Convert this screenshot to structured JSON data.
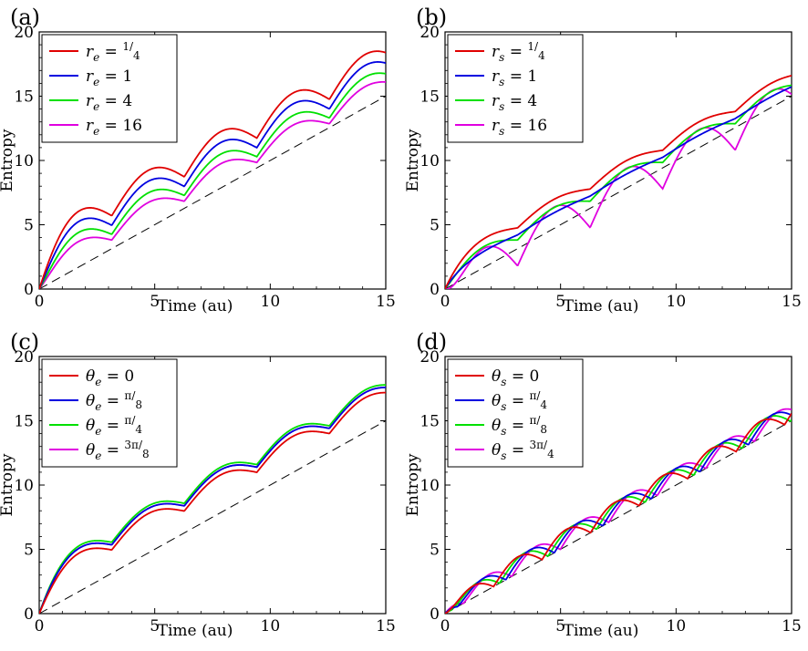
{
  "chart_data": [
    {
      "type": "line",
      "panel_label": "(a)",
      "xlabel": "Time (au)",
      "ylabel": "Entropy",
      "xlim": [
        0,
        15
      ],
      "ylim": [
        0,
        20
      ],
      "xticks": [
        "0",
        "5",
        "10",
        "15"
      ],
      "yticks": [
        "0",
        "5",
        "10",
        "15",
        "20"
      ],
      "grid": false,
      "legend_position": "top-left",
      "model": "arches",
      "reference_line": {
        "name": "dashed reference",
        "x": [
          0,
          15
        ],
        "y": [
          0,
          15
        ],
        "color": "#000000",
        "style": "dashed"
      },
      "series": [
        {
          "name": "r_e = 1/4",
          "legend": {
            "var": "r",
            "sub": "e",
            "value": "1/4"
          },
          "color": "#e00000",
          "offset": 3.7,
          "amp": 2.0,
          "period": 3.14,
          "sharp": 0.6
        },
        {
          "name": "r_e = 1",
          "legend": {
            "var": "r",
            "sub": "e",
            "value": "1"
          },
          "color": "#0000e0",
          "offset": 2.9,
          "amp": 1.9,
          "period": 3.14,
          "sharp": 0.6
        },
        {
          "name": "r_e = 4",
          "legend": {
            "var": "r",
            "sub": "e",
            "value": "4"
          },
          "color": "#00e000",
          "offset": 2.1,
          "amp": 1.7,
          "period": 3.14,
          "sharp": 0.6
        },
        {
          "name": "r_e = 16",
          "legend": {
            "var": "r",
            "sub": "e",
            "value": "16"
          },
          "color": "#e000e0",
          "offset": 1.5,
          "amp": 1.4,
          "period": 3.14,
          "sharp": 0.6
        }
      ]
    },
    {
      "type": "line",
      "panel_label": "(b)",
      "xlabel": "Time (au)",
      "ylabel": "Entropy",
      "xlim": [
        0,
        15
      ],
      "ylim": [
        0,
        20
      ],
      "xticks": [
        "0",
        "5",
        "10",
        "15"
      ],
      "yticks": [
        "0",
        "5",
        "10",
        "15",
        "20"
      ],
      "grid": false,
      "legend_position": "top-left",
      "model": "arches",
      "reference_line": {
        "name": "dashed reference",
        "x": [
          0,
          15
        ],
        "y": [
          0,
          15
        ],
        "color": "#000000",
        "style": "dashed"
      },
      "series": [
        {
          "name": "r_s = 1/4",
          "legend": {
            "var": "r",
            "sub": "s",
            "value": "1/4"
          },
          "color": "#e00000",
          "offset": 2.1,
          "amp": 0.7,
          "period": 3.14,
          "sharp": 0.6
        },
        {
          "name": "r_s = 1",
          "legend": {
            "var": "r",
            "sub": "s",
            "value": "1"
          },
          "color": "#0000e0",
          "offset": 1.3,
          "amp": 0.2,
          "period": 3.14,
          "sharp": 0.6
        },
        {
          "name": "r_s = 4",
          "legend": {
            "var": "r",
            "sub": "s",
            "value": "4"
          },
          "color": "#00e000",
          "offset": 1.3,
          "amp": 1.0,
          "period": 3.14,
          "sharp": 0.6
        },
        {
          "name": "r_s = 16",
          "legend": {
            "var": "r",
            "sub": "s",
            "value": "16"
          },
          "color": "#e000e0",
          "offset": 0.3,
          "amp": 3.1,
          "period": 3.14,
          "sharp": 0.9
        }
      ]
    },
    {
      "type": "line",
      "panel_label": "(c)",
      "xlabel": "Time (au)",
      "ylabel": "Entropy",
      "xlim": [
        0,
        15
      ],
      "ylim": [
        0,
        20
      ],
      "xticks": [
        "0",
        "5",
        "10",
        "15"
      ],
      "yticks": [
        "0",
        "5",
        "10",
        "15",
        "20"
      ],
      "grid": false,
      "legend_position": "top-left",
      "model": "arches",
      "reference_line": {
        "name": "dashed reference",
        "x": [
          0,
          15
        ],
        "y": [
          0,
          15
        ],
        "color": "#000000",
        "style": "dashed"
      },
      "series": [
        {
          "name": "theta_e = 0",
          "legend": {
            "var": "θ",
            "sub": "e",
            "value": "0"
          },
          "color": "#e00000",
          "offset": 2.6,
          "amp": 1.3,
          "period": 3.14,
          "sharp": 0.6
        },
        {
          "name": "theta_e = pi/8",
          "legend": {
            "var": "θ",
            "sub": "e",
            "value": "π/8"
          },
          "color": "#0000e0",
          "offset": 3.0,
          "amp": 1.3,
          "period": 3.14,
          "sharp": 0.6
        },
        {
          "name": "theta_e = pi/4",
          "legend": {
            "var": "θ",
            "sub": "e",
            "value": "π/4"
          },
          "color": "#00e000",
          "offset": 3.2,
          "amp": 1.3,
          "period": 3.14,
          "sharp": 0.6
        },
        {
          "name": "theta_e = 3pi/8",
          "legend": {
            "var": "θ",
            "sub": "e",
            "value": "3π/8"
          },
          "color": "#e000e0",
          "offset": 3.0,
          "amp": 1.3,
          "period": 3.14,
          "sharp": 0.6
        }
      ]
    },
    {
      "type": "line",
      "panel_label": "(d)",
      "xlabel": "Time (au)",
      "ylabel": "Entropy",
      "xlim": [
        0,
        15
      ],
      "ylim": [
        0,
        20
      ],
      "xticks": [
        "0",
        "5",
        "10",
        "15"
      ],
      "yticks": [
        "0",
        "5",
        "10",
        "15",
        "20"
      ],
      "grid": false,
      "legend_position": "top-left",
      "model": "oscillating",
      "reference_line": {
        "name": "dashed reference",
        "x": [
          0,
          15
        ],
        "y": [
          0,
          15
        ],
        "color": "#000000",
        "style": "dashed"
      },
      "series": [
        {
          "name": "theta_s = 0",
          "legend": {
            "var": "θ",
            "sub": "s",
            "value": "0"
          },
          "color": "#e00000",
          "phase": 0.0,
          "period": 1.05,
          "amp": 1.5
        },
        {
          "name": "theta_s = pi/4",
          "legend": {
            "var": "θ",
            "sub": "s",
            "value": "π/4"
          },
          "color": "#0000e0",
          "phase": 0.53,
          "period": 1.05,
          "amp": 1.5
        },
        {
          "name": "theta_s = pi/8",
          "legend": {
            "var": "θ",
            "sub": "s",
            "value": "π/8"
          },
          "color": "#00e000",
          "phase": 0.26,
          "period": 1.05,
          "amp": 1.5
        },
        {
          "name": "theta_s = 3pi/4",
          "legend": {
            "var": "θ",
            "sub": "s",
            "value": "3π/4"
          },
          "color": "#e000e0",
          "phase": 0.79,
          "period": 1.05,
          "amp": 1.5
        }
      ]
    }
  ]
}
